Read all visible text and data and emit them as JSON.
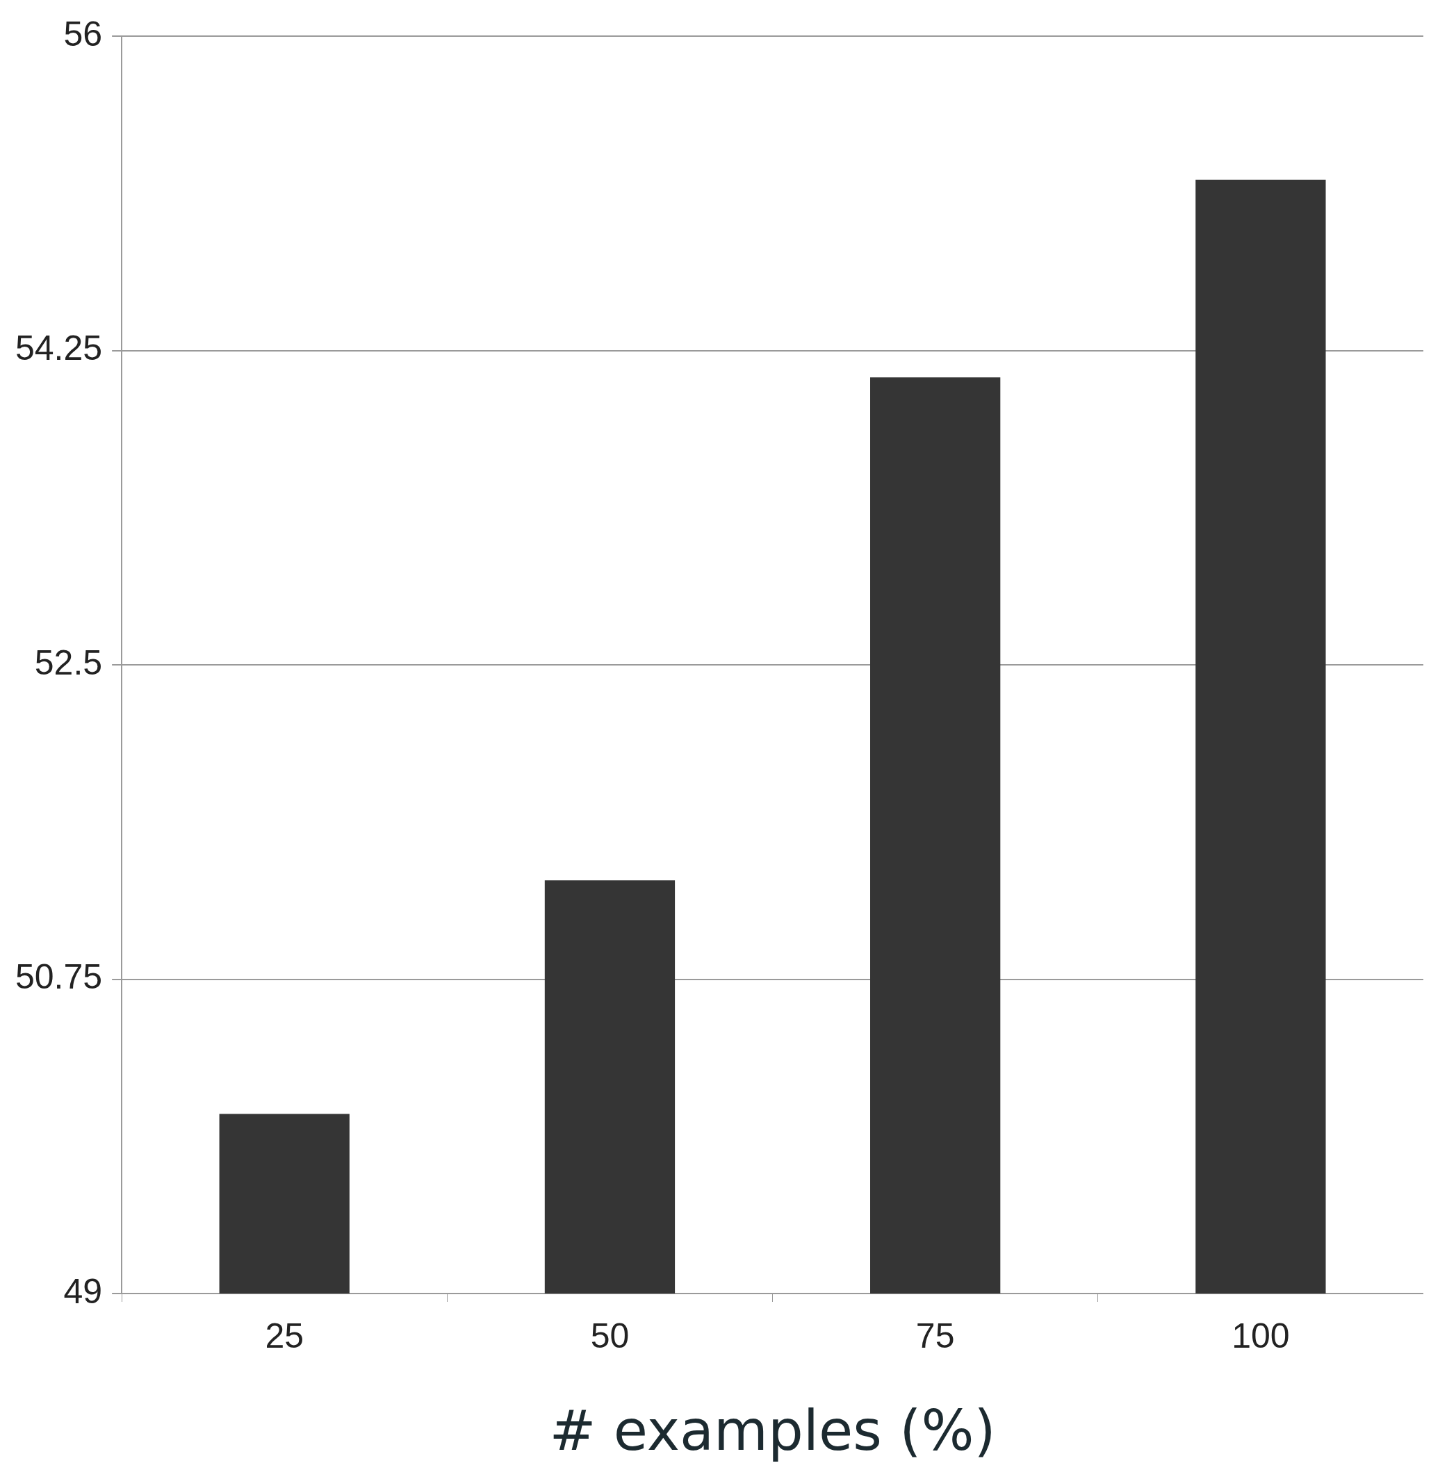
{
  "chart_data": {
    "type": "bar",
    "xlabel": "# examples (%)",
    "categories": [
      "25",
      "50",
      "75",
      "100"
    ],
    "values": [
      50.0,
      51.3,
      54.1,
      55.2
    ],
    "color": "#353535",
    "ylim": [
      49,
      56
    ],
    "yticks": [
      49,
      50.75,
      52.5,
      54.25,
      56
    ],
    "grid": "y",
    "legend": false
  }
}
